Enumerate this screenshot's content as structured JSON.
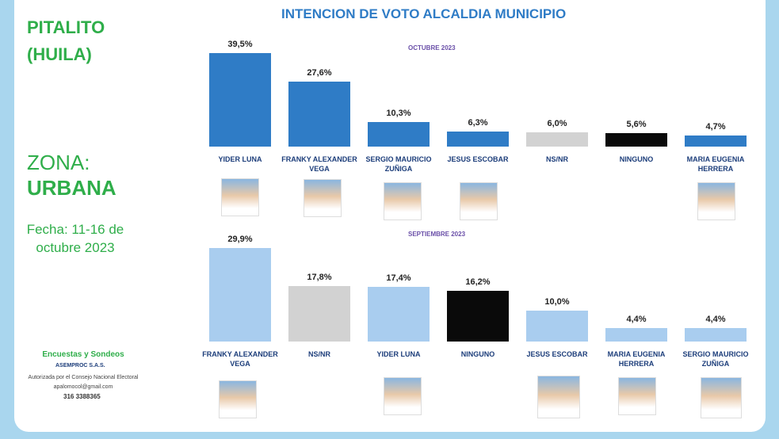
{
  "title": "INTENCION DE VOTO ALCALDIA MUNICIPIO",
  "side": {
    "place": "PITALITO",
    "region": "(HUILA)",
    "zone_label": "ZONA:",
    "zone": "URBANA",
    "date": "Fecha: 11-16 de octubre 2023"
  },
  "footer": {
    "line1": "Encuestas y Sondeos",
    "company": "ASEMPROC S.A.S.",
    "auth": "Autorizada por el Consejo Nacional Electoral",
    "email": "apalomocol@gmail.com",
    "phone": "316 3388365"
  },
  "chart_data": [
    {
      "type": "bar",
      "subtitle": "OCTUBRE 2023",
      "categories": [
        "YIDER LUNA",
        "FRANKY ALEXANDER VEGA",
        "SERGIO MAURICIO ZUÑIGA",
        "JESUS ESCOBAR",
        "NS/NR",
        "NINGUNO",
        "MARIA EUGENIA HERRERA"
      ],
      "values": [
        39.5,
        27.6,
        10.3,
        6.3,
        6.0,
        5.6,
        4.7
      ],
      "value_labels": [
        "39,5%",
        "27,6%",
        "10,3%",
        "6,3%",
        "6,0%",
        "5,6%",
        "4,7%"
      ],
      "colors": [
        "#2f7cc6",
        "#2f7cc6",
        "#2f7cc6",
        "#2f7cc6",
        "#d2d2d2",
        "#0a0a0a",
        "#2f7cc6"
      ]
    },
    {
      "type": "bar",
      "subtitle": "SEPTIEMBRE 2023",
      "categories": [
        "FRANKY ALEXANDER VEGA",
        "NS/NR",
        "YIDER LUNA",
        "NINGUNO",
        "JESUS ESCOBAR",
        "MARIA EUGENIA HERRERA",
        "SERGIO MAURICIO ZUÑIGA"
      ],
      "values": [
        29.9,
        17.8,
        17.4,
        16.2,
        10.0,
        4.4,
        4.4
      ],
      "value_labels": [
        "29,9%",
        "17,8%",
        "17,4%",
        "16,2%",
        "10,0%",
        "4,4%",
        "4,4%"
      ],
      "colors": [
        "#a9cdef",
        "#d2d2d2",
        "#a9cdef",
        "#0a0a0a",
        "#a9cdef",
        "#a9cdef",
        "#a9cdef"
      ]
    }
  ]
}
